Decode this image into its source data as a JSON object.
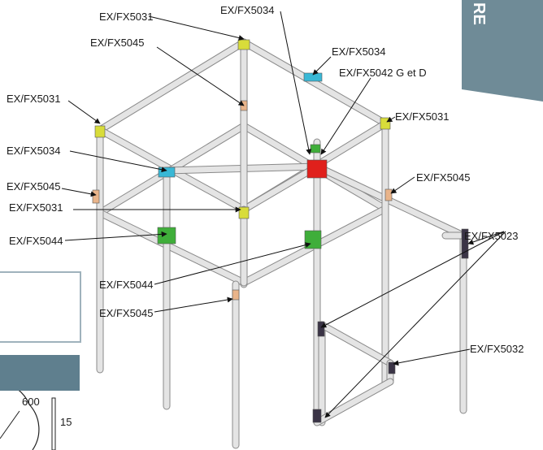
{
  "side_tab": {
    "text": "RE",
    "color": "#6f8b97"
  },
  "labels": {
    "l_top_left_5031": "EX/FX5031",
    "l_top_5034": "EX/FX5034",
    "l_5045_a": "EX/FX5045",
    "l_5034_right": "EX/FX5034",
    "l_5042": "EX/FX5042 G et D",
    "l_5031_left": "EX/FX5031",
    "l_5031_right": "EX/FX5031",
    "l_5034_left": "EX/FX5034",
    "l_5045_right": "EX/FX5045",
    "l_5045_left": "EX/FX5045",
    "l_5031_mid": "EX/FX5031",
    "l_5023": "EX/FX5023",
    "l_5044_left": "EX/FX5044",
    "l_5044_mid": "EX/FX5044",
    "l_5045_bottom": "EX/FX5045",
    "l_5032": "EX/FX5032"
  },
  "dimensions": {
    "d600": "600",
    "d15": "15"
  },
  "colors": {
    "tube": "#e4e4e4",
    "tube_edge": "#8a8a8a",
    "yellow": "#d8dc3a",
    "cyan": "#39b8d6",
    "red": "#e0201c",
    "green": "#3fae3a",
    "orange": "#e9b48a",
    "dark": "#3a3446"
  }
}
